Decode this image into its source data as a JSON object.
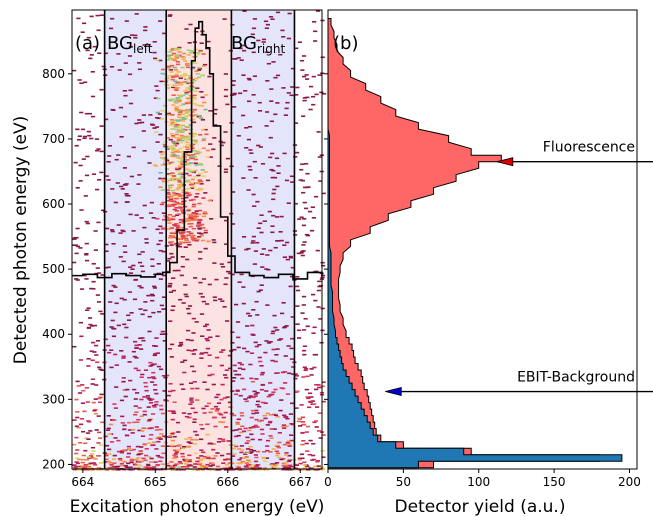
{
  "chart_data": [
    {
      "panel": "(a)",
      "type": "heatmap",
      "xlabel": "Excitation photon energy (eV)",
      "ylabel": "Detected photon energy (eV)",
      "xlim": [
        663.85,
        667.3
      ],
      "ylim": [
        193,
        898
      ],
      "xticks": [
        664,
        665,
        666,
        667
      ],
      "yticks": [
        200,
        300,
        400,
        500,
        600,
        700,
        800
      ],
      "regions": [
        {
          "name": "BG",
          "sub": "left",
          "range": [
            664.3,
            665.15
          ],
          "color": "#e4e4fa"
        },
        {
          "name": "",
          "sub": "",
          "range": [
            665.15,
            666.05
          ],
          "color": "#fde2e2"
        },
        {
          "name": "BG",
          "sub": "right",
          "range": [
            666.05,
            666.92
          ],
          "color": "#e4e4fa"
        }
      ],
      "boundaries": [
        664.3,
        665.15,
        666.05,
        666.92
      ],
      "overlay_profile": {
        "x": [
          663.85,
          664.0,
          664.2,
          664.4,
          664.6,
          664.8,
          665.0,
          665.1,
          665.2,
          665.3,
          665.4,
          665.5,
          665.55,
          665.6,
          665.65,
          665.7,
          665.75,
          665.8,
          665.9,
          666.0,
          666.1,
          666.3,
          666.5,
          666.7,
          666.9,
          667.1,
          667.3
        ],
        "y": [
          490,
          492,
          487,
          493,
          490,
          488,
          492,
          495,
          510,
          560,
          680,
          820,
          870,
          880,
          860,
          840,
          800,
          720,
          580,
          520,
          495,
          490,
          487,
          492,
          485,
          495,
          490
        ]
      }
    },
    {
      "panel": "(b)",
      "type": "area",
      "xlabel": "Detector yield (a.u.)",
      "xlim": [
        0,
        205
      ],
      "ylim": [
        193,
        898
      ],
      "xticks": [
        0,
        50,
        100,
        150,
        200
      ],
      "series": [
        {
          "name": "Fluorescence",
          "color": "#ff6666",
          "y": [
            200,
            210,
            220,
            230,
            240,
            250,
            260,
            270,
            280,
            290,
            300,
            310,
            320,
            330,
            340,
            350,
            360,
            370,
            380,
            390,
            400,
            420,
            440,
            460,
            480,
            500,
            520,
            540,
            560,
            580,
            600,
            620,
            640,
            660,
            670,
            680,
            700,
            720,
            740,
            760,
            780,
            800,
            820,
            840,
            860,
            880
          ],
          "values": [
            70,
            180,
            95,
            50,
            35,
            32,
            31,
            30,
            29,
            28,
            27,
            26,
            24,
            23,
            22,
            20,
            18,
            17,
            16,
            14,
            12,
            10,
            8,
            7,
            7,
            8,
            10,
            15,
            28,
            40,
            55,
            70,
            85,
            100,
            115,
            95,
            80,
            60,
            45,
            35,
            25,
            15,
            10,
            6,
            4,
            2
          ]
        },
        {
          "name": "EBIT-Background",
          "color": "#1f77b4",
          "y": [
            200,
            210,
            220,
            230,
            240,
            250,
            260,
            270,
            280,
            290,
            300,
            310,
            320,
            330,
            340,
            350,
            360,
            370,
            380,
            390,
            400,
            420,
            440,
            460,
            480,
            500,
            520,
            540,
            560,
            580,
            600,
            620,
            640,
            660,
            680,
            700,
            720,
            740,
            760,
            780,
            800,
            820,
            840,
            860,
            880
          ],
          "values": [
            60,
            195,
            90,
            45,
            33,
            30,
            28,
            26,
            24,
            22,
            20,
            18,
            16,
            14,
            12,
            10,
            9,
            8,
            7,
            6,
            5,
            4,
            3,
            3,
            2,
            2,
            2,
            1,
            1,
            1,
            1,
            1,
            1,
            1,
            1,
            1,
            0,
            0,
            0,
            0,
            0,
            0,
            0,
            0,
            0
          ]
        }
      ],
      "annotations": [
        {
          "text": "Fluorescence",
          "arrow_from_x": 205,
          "arrow_to_x": 112,
          "y": 665,
          "arrow_color": "#dd0000"
        },
        {
          "text": "EBIT-Background",
          "arrow_from_x": 205,
          "arrow_to_x": 38,
          "y": 312,
          "arrow_color": "#0000cc"
        }
      ]
    }
  ]
}
